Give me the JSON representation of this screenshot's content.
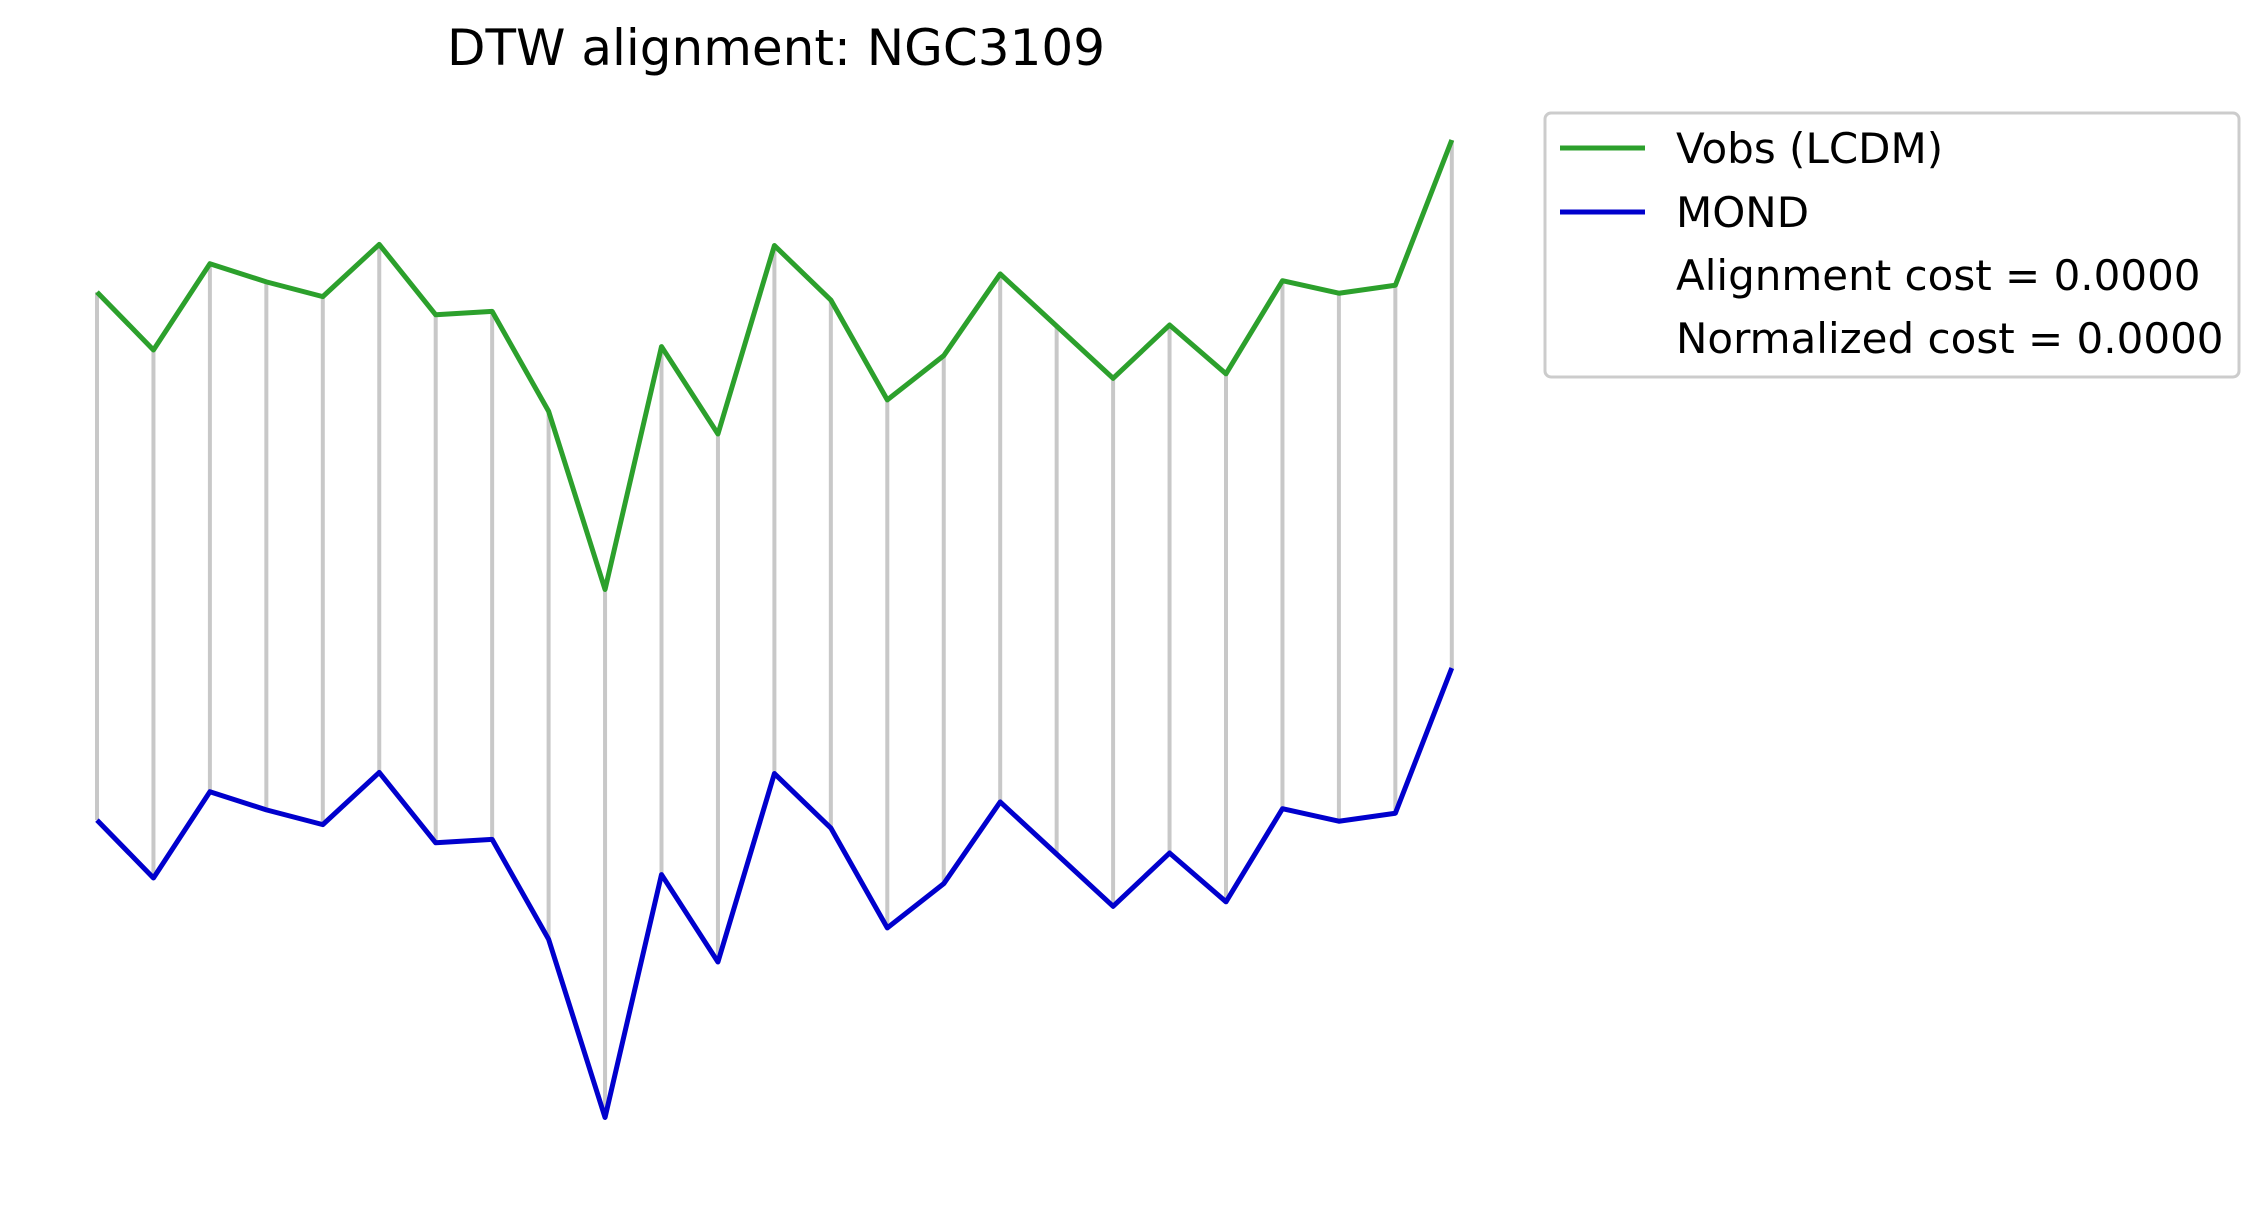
{
  "chart_data": {
    "type": "line",
    "title": "DTW alignment: NGC3109",
    "xlabel": "",
    "ylabel": "",
    "axes_visible": false,
    "grid": false,
    "legend_position": "upper-right outside",
    "series": [
      {
        "name": "Vobs (LCDM)",
        "color": "#2ca02c",
        "values": [
          67.8,
          62.7,
          70.3,
          68.7,
          67.4,
          72.0,
          65.8,
          66.1,
          57.3,
          41.6,
          63.0,
          55.3,
          71.9,
          67.1,
          58.3,
          62.2,
          69.4,
          64.8,
          60.2,
          64.9,
          60.6,
          68.8,
          67.7,
          68.4,
          81.2
        ]
      },
      {
        "name": "MOND",
        "color": "#0000cd",
        "values": [
          67.8,
          62.7,
          70.3,
          68.7,
          67.4,
          72.0,
          65.8,
          66.1,
          57.3,
          41.6,
          63.0,
          55.3,
          71.9,
          67.1,
          58.3,
          62.2,
          69.4,
          64.8,
          60.2,
          64.9,
          60.6,
          68.8,
          67.7,
          68.4,
          81.2
        ]
      }
    ],
    "alignment": {
      "color": "#c8c8c8",
      "pairs": "index-to-index"
    },
    "legend": {
      "entries": [
        {
          "label": "Vobs (LCDM)",
          "color": "#2ca02c",
          "has_line": true
        },
        {
          "label": "MOND",
          "color": "#0000cd",
          "has_line": true
        },
        {
          "label": "Alignment cost = 0.0000",
          "has_line": false
        },
        {
          "label": "Normalized cost = 0.0000",
          "has_line": false
        }
      ]
    }
  }
}
